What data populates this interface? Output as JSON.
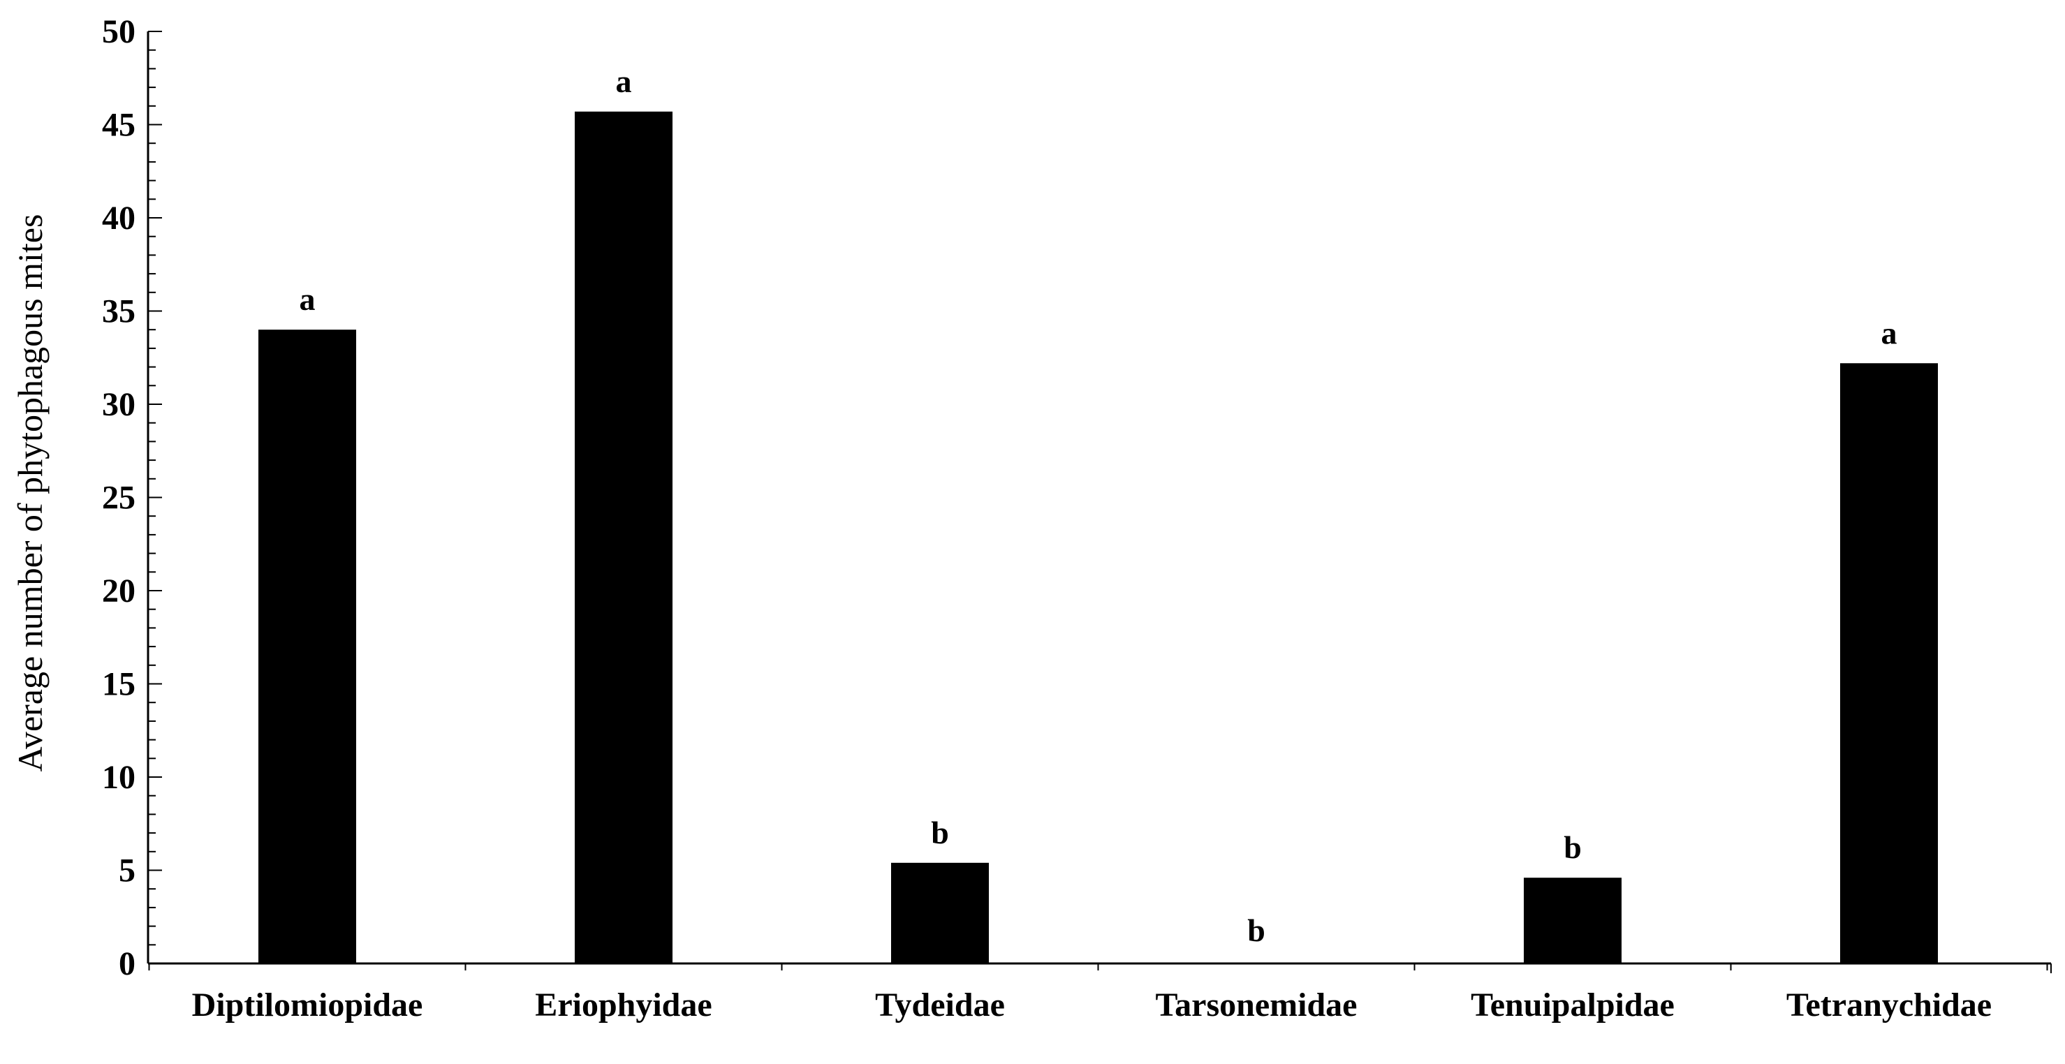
{
  "chart_data": {
    "type": "bar",
    "title": "",
    "xlabel": "",
    "ylabel": "Average number of phytophagous mites",
    "categories": [
      "Diptilomiopidae",
      "Eriophyidae",
      "Tydeidae",
      "Tarsonemidae",
      "Tenuipalpidae",
      "Tetranychidae"
    ],
    "values": [
      34.0,
      45.7,
      5.4,
      0,
      4.6,
      32.2
    ],
    "significance_letters": [
      "a",
      "a",
      "b",
      "b",
      "b",
      "a"
    ],
    "ylim": [
      0,
      50
    ],
    "yticks": [
      0,
      5,
      10,
      15,
      20,
      25,
      30,
      35,
      40,
      45,
      50
    ],
    "grid": false,
    "legend": "none",
    "bar_color": "#000000"
  }
}
